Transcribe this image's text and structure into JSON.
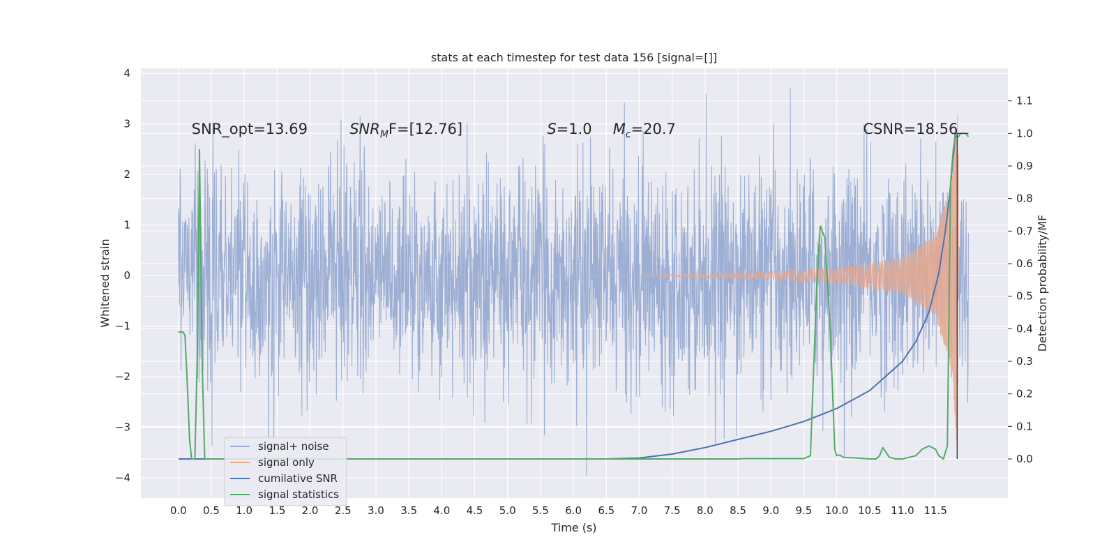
{
  "chart_data": {
    "type": "line",
    "title": "stats at each timestep for test data 156 [signal=[]]",
    "xlabel": "Time (s)",
    "ylabel": "Whitened strain",
    "ylabel_right": "Detection probability/MF",
    "xlim": [
      -0.57,
      12.6
    ],
    "ylim": [
      -4.4,
      4.1
    ],
    "ylim_right": [
      -0.12,
      1.2
    ],
    "grid": true,
    "legend_placement": "lower-left",
    "x_ticks": [
      0.0,
      0.5,
      1.0,
      1.5,
      2.0,
      2.5,
      3.0,
      3.5,
      4.0,
      4.5,
      5.0,
      5.5,
      6.0,
      6.5,
      7.0,
      7.5,
      8.0,
      8.5,
      9.0,
      9.5,
      10.0,
      10.5,
      11.0,
      11.5
    ],
    "x_tick_labels": [
      "0.0",
      "0.5",
      "1.0",
      "1.5",
      "2.0",
      "2.5",
      "3.0",
      "3.5",
      "4.0",
      "4.5",
      "5.0",
      "5.5",
      "6.0",
      "6.5",
      "7.0",
      "7.5",
      "8.0",
      "8.5",
      "9.0",
      "9.5",
      "10.0",
      "10.5",
      "11.0",
      "11.5"
    ],
    "y_ticks": [
      -4,
      -3,
      -2,
      -1,
      0,
      1,
      2,
      3,
      4
    ],
    "y_tick_labels": [
      "−4",
      "−3",
      "−2",
      "−1",
      "0",
      "1",
      "2",
      "3",
      "4"
    ],
    "y_right_ticks": [
      0.0,
      0.1,
      0.2,
      0.3,
      0.4,
      0.5,
      0.6,
      0.7,
      0.8,
      0.9,
      1.0,
      1.1
    ],
    "y_right_tick_labels": [
      "0.0",
      "0.1",
      "0.2",
      "0.3",
      "0.4",
      "0.5",
      "0.6",
      "0.7",
      "0.8",
      "0.9",
      "1.0",
      "1.1"
    ],
    "annotations": [
      {
        "id": "snr-opt",
        "text": "SNR_opt=13.69",
        "x": 0.2,
        "y": 2.9
      },
      {
        "id": "snr-mf",
        "text": "SNR",
        "sub": "M",
        "rest": "F=[12.76]",
        "italic": true,
        "x": 2.6,
        "y": 2.9
      },
      {
        "id": "s-val",
        "text": "S",
        "rest": "=1.0",
        "italic": true,
        "x": 5.6,
        "y": 2.9
      },
      {
        "id": "mc-val",
        "text": "M",
        "sub": "c",
        "rest": "=20.7",
        "italic": true,
        "x": 6.6,
        "y": 2.9
      },
      {
        "id": "csnr",
        "text": "CSNR=18.56",
        "x": 10.4,
        "y": 2.9
      }
    ],
    "legend": [
      {
        "label": "signal+ noise",
        "color": "#98abd1"
      },
      {
        "label": "signal only",
        "color": "#e8a88e"
      },
      {
        "label": "cumilative SNR",
        "color": "#4c72b0"
      },
      {
        "label": "signal statistics",
        "color": "#55a868"
      }
    ],
    "series": [
      {
        "name": "signal+ noise",
        "axis": "left",
        "color": "#98abd1",
        "style": "noise-band",
        "x_range": [
          0.0,
          12.0
        ],
        "typical_amplitude": 1.7,
        "peak_range": [
          -4.1,
          3.7
        ]
      },
      {
        "name": "signal only",
        "axis": "left",
        "color": "#e8a88e",
        "style": "chirp",
        "x_range": [
          0.0,
          12.0
        ],
        "envelope": {
          "x": [
            0.0,
            7.0,
            9.0,
            10.0,
            11.0,
            11.5,
            11.75,
            11.82
          ],
          "y": [
            0.0,
            0.005,
            0.08,
            0.15,
            0.35,
            0.8,
            1.9,
            3.3
          ]
        },
        "merger_time": 11.85
      },
      {
        "name": "cumilative SNR",
        "axis": "right",
        "color": "#4c72b0",
        "x": [
          0.0,
          6.5,
          7.0,
          7.5,
          8.0,
          8.5,
          9.0,
          9.5,
          10.0,
          10.5,
          11.0,
          11.2,
          11.4,
          11.55,
          11.65,
          11.72,
          11.78,
          11.8,
          11.83
        ],
        "values": [
          0.0,
          0.0,
          0.003,
          0.015,
          0.035,
          0.06,
          0.085,
          0.115,
          0.155,
          0.21,
          0.3,
          0.36,
          0.45,
          0.57,
          0.7,
          0.82,
          0.95,
          1.0,
          1.0
        ]
      },
      {
        "name": "signal statistics",
        "axis": "right",
        "color": "#55a868",
        "x": [
          0.0,
          0.07,
          0.1,
          0.13,
          0.17,
          0.2,
          0.25,
          0.29,
          0.32,
          0.36,
          0.4,
          0.5,
          1.0,
          5.0,
          8.5,
          8.6,
          9.5,
          9.6,
          9.7,
          9.75,
          9.82,
          9.9,
          9.97,
          10.0,
          10.05,
          10.1,
          10.3,
          10.5,
          10.6,
          10.65,
          10.7,
          10.8,
          10.9,
          11.0,
          11.1,
          11.2,
          11.3,
          11.4,
          11.5,
          11.55,
          11.62,
          11.68,
          11.73,
          11.77,
          11.8,
          11.85,
          11.88,
          11.9,
          11.96,
          12.0
        ],
        "values": [
          0.39,
          0.39,
          0.38,
          0.25,
          0.06,
          0.0,
          0.0,
          0.35,
          0.95,
          0.3,
          0.0,
          0.0,
          0.0,
          0.0,
          0.0,
          0.001,
          0.001,
          0.01,
          0.55,
          0.715,
          0.68,
          0.4,
          0.03,
          0.01,
          0.012,
          0.005,
          0.003,
          0.0,
          0.0,
          0.01,
          0.035,
          0.005,
          0.0,
          0.0,
          0.005,
          0.01,
          0.03,
          0.04,
          0.03,
          0.01,
          0.0,
          0.04,
          0.85,
          0.95,
          0.99,
          0.99,
          1.0,
          1.0,
          1.0,
          0.99
        ]
      }
    ]
  }
}
